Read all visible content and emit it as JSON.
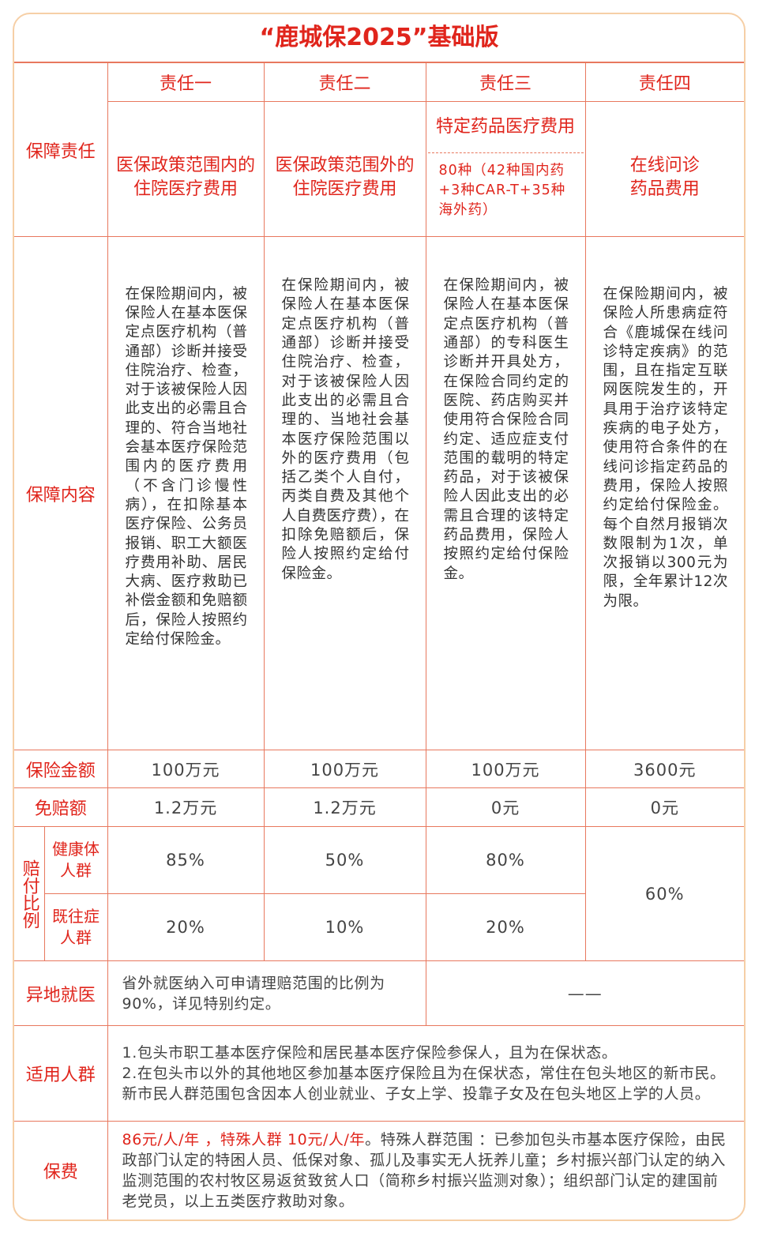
{
  "title": "“鹿城保2025”基础版",
  "row_labels": {
    "responsibility": "保障责任",
    "content": "保障内容",
    "sum_insured": "保险金额",
    "deductible": "免赔额",
    "ratio": "赔付比例",
    "healthy": "健康体人群",
    "preexisting": "既往症人群",
    "remote": "异地就医",
    "population": "适用人群",
    "premium": "保费"
  },
  "columns": [
    {
      "header": "责任一",
      "responsibility": "医保政策范围内的住院医疗费用",
      "content": "在保险期间内，被保险人在基本医保定点医疗机构（普通部）诊断并接受住院治疗、检查，对于该被保险人因此支出的必需且合理的、符合当地社会基本医疗保险范围内的医疗费用（不含门诊慢性病），在扣除基本医疗保险、公务员报销、职工大额医疗费用补助、居民大病、医疗救助已补偿金额和免赔额后，保险人按照约定给付保险金。",
      "sum_insured": "100万元",
      "deductible": "1.2万元",
      "healthy": "85%",
      "preexisting": "20%"
    },
    {
      "header": "责任二",
      "responsibility": "医保政策范围外的住院医疗费用",
      "content": "在保险期间内，被保险人在基本医保定点医疗机构（普通部）诊断并接受住院治疗、检查，对于该被保险人因此支出的必需且合理的、当地社会基本医疗保险范围以外的医疗费用（包括乙类个人自付，丙类自费及其他个人自费医疗费），在扣除免赔额后，保险人按照约定给付保险金。",
      "sum_insured": "100万元",
      "deductible": "1.2万元",
      "healthy": "50%",
      "preexisting": "10%"
    },
    {
      "header": "责任三",
      "responsibility": "特定药品医疗费用",
      "responsibility_note": "80种（42种国内药+3种CAR-T+35种海外药）",
      "content": "在保险期间内，被保险人在基本医保定点医疗机构（普通部）的专科医生诊断并开具处方，在保险合同约定的医院、药店购买并使用符合保险合同约定、适应症支付范围的载明的特定药品，对于该被保险人因此支出的必需且合理的该特定药品费用，保险人按照约定给付保险金。",
      "sum_insured": "100万元",
      "deductible": "0元",
      "healthy": "80%",
      "preexisting": "20%"
    },
    {
      "header": "责任四",
      "responsibility": "在线问诊药品费用",
      "content": "在保险期间内，被保险人所患病症符合《鹿城保在线问诊特定疾病》的范围，且在指定互联网医院发生的，开具用于治疗该特定疾病的电子处方，使用符合条件的在线问诊指定药品的费用，保险人按照约定给付保险金。每个自然月报销次数限制为1次，单次报销以300元为限，全年累计12次为限。",
      "sum_insured": "3600元",
      "deductible": "0元",
      "ratio": "60%"
    }
  ],
  "remote": {
    "text": "省外就医纳入可申请理赔范围的比例为90%，详见特别约定。",
    "na": "——"
  },
  "population": {
    "line1": "1.包头市职工基本医疗保险和居民基本医疗保险参保人，且为在保状态。",
    "line2": "2.在包头市以外的其他地区参加基本医疗保险且为在保状态，常住在包头地区的新市民。新市民人群范围包含因本人创业就业、子女上学、投靠子女及在包头地区上学的人员。"
  },
  "premium": {
    "highlight": "86元/人/年 ，特殊人群 10元/人/年",
    "text": "。特殊人群范围 ：已参加包头市基本医疗保险，由民政部门认定的特困人员、低保对象、孤儿及事实无人抚养儿童；乡村振兴部门认定的纳入监测范围的农村牧区易返贫致贫人口（简称乡村振兴监测对象）；组织部门认定的建国前老党员，以上五类医疗救助对象。"
  },
  "colors": {
    "accent": "#e0251c",
    "border": "#e8785e",
    "frame": "#f6cfa6"
  }
}
